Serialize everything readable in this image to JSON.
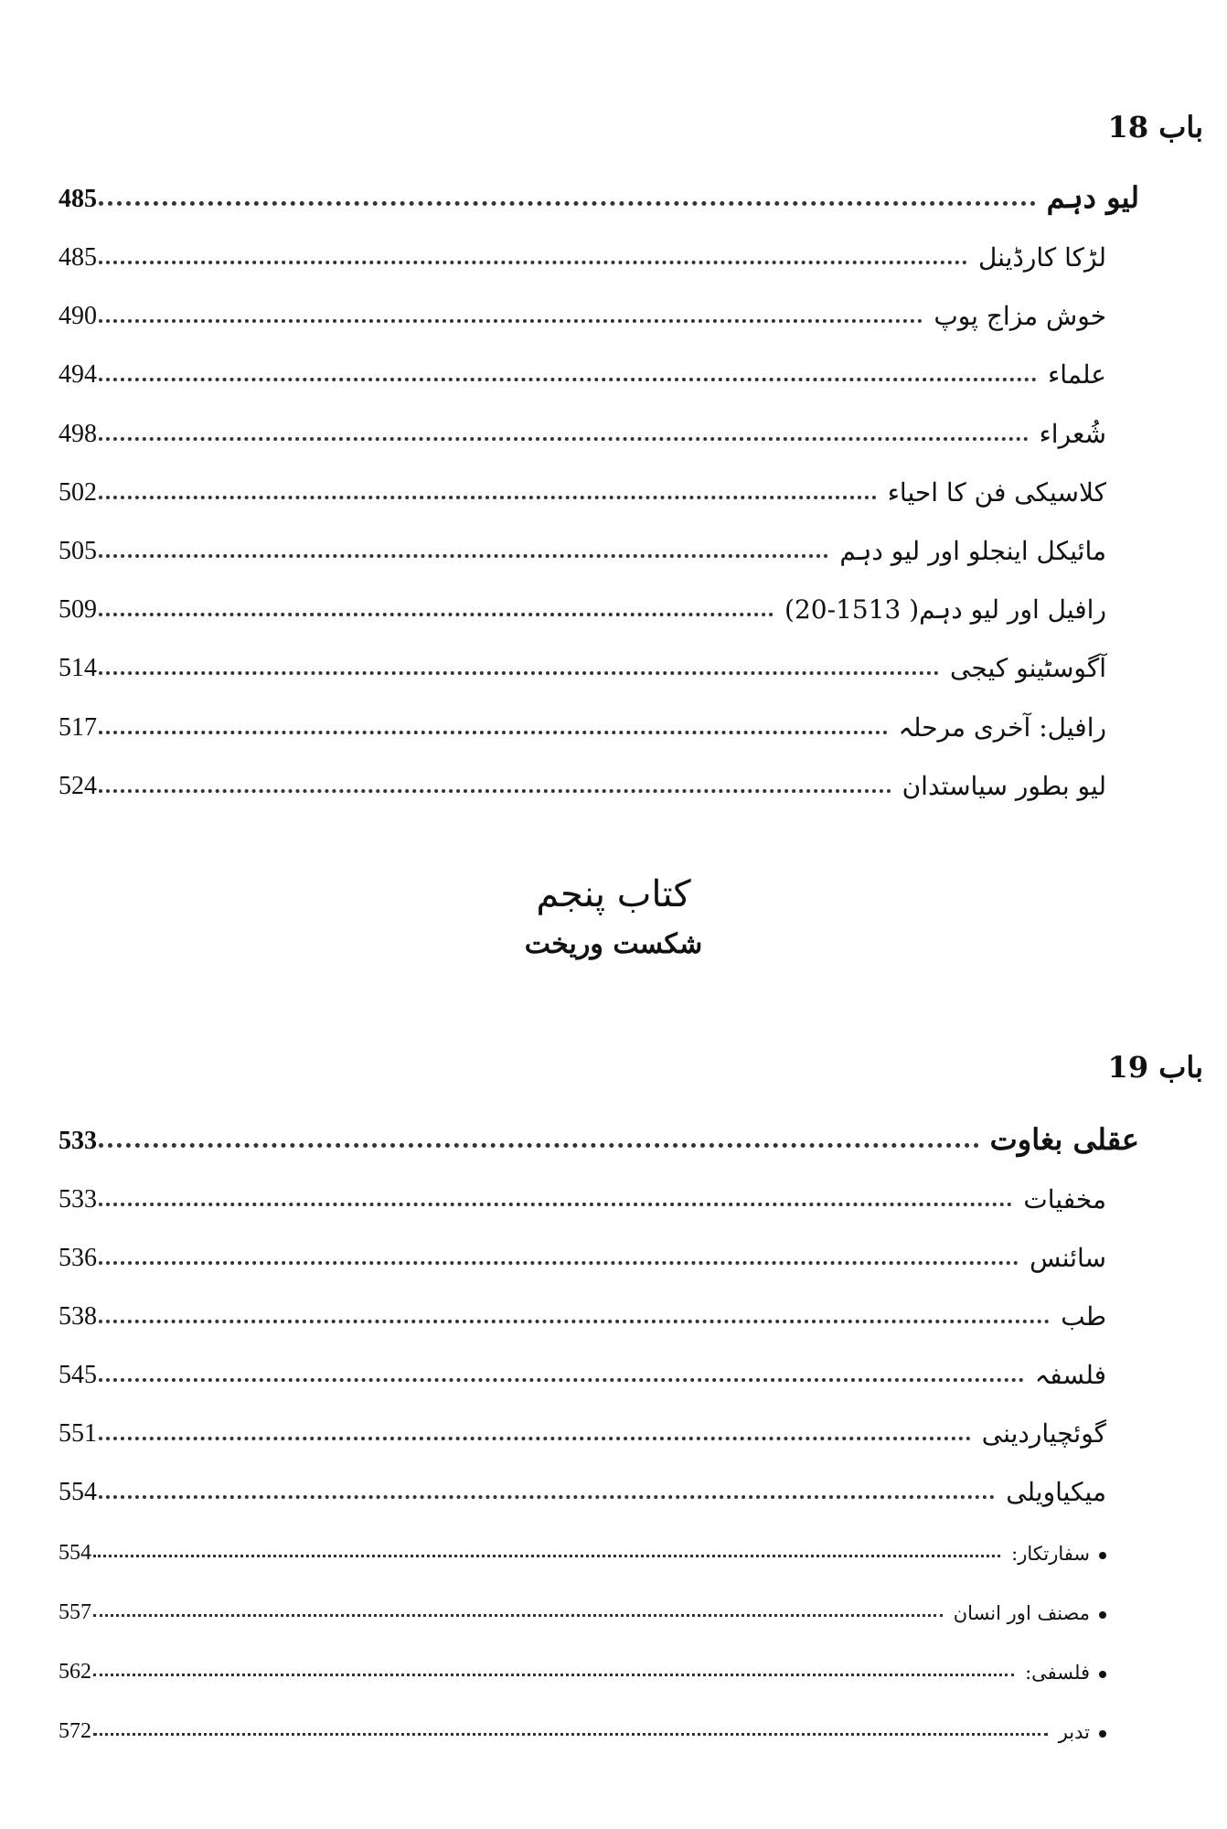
{
  "chapter18": {
    "label": "باب 18",
    "heading": {
      "title": "لیو دہم",
      "page": "485"
    },
    "items": [
      {
        "title": "لڑکا کارڈینل",
        "page": "485"
      },
      {
        "title": "خوش مزاج پوپ",
        "page": "490"
      },
      {
        "title": "علماء",
        "page": "494"
      },
      {
        "title": "شُعراء",
        "page": "498"
      },
      {
        "title": "کلاسیکی فن کا احیاء",
        "page": "502"
      },
      {
        "title": "مائیکل اینجلو اور لیو دہم",
        "page": "505"
      },
      {
        "title": "رافیل اور لیو دہم( 1513-20)",
        "page": "509"
      },
      {
        "title": "آگوسٹینو کیجی",
        "page": "514"
      },
      {
        "title": "رافیل: آخری مرحلہ",
        "page": "517"
      },
      {
        "title": "لیو بطور سیاستدان",
        "page": "524"
      }
    ]
  },
  "book": {
    "title": "کتاب پنجم",
    "subtitle": "شکست وریخت"
  },
  "chapter19": {
    "label": "باب 19",
    "heading": {
      "title": "عقلی بغاوت",
      "page": "533"
    },
    "items": [
      {
        "title": "مخفیات",
        "page": "533"
      },
      {
        "title": "سائنس",
        "page": "536"
      },
      {
        "title": "طب",
        "page": "538"
      },
      {
        "title": "فلسفہ",
        "page": "545"
      },
      {
        "title": "گوئچیاردینی",
        "page": "551"
      },
      {
        "title": "میکیاویلی",
        "page": "554"
      }
    ],
    "subitems": [
      {
        "title": "سفارتکار:",
        "page": "554"
      },
      {
        "title": "مصنف اور انسان",
        "page": "557"
      },
      {
        "title": "فلسفی:",
        "page": "562"
      },
      {
        "title": "تدبر",
        "page": "572"
      }
    ]
  }
}
